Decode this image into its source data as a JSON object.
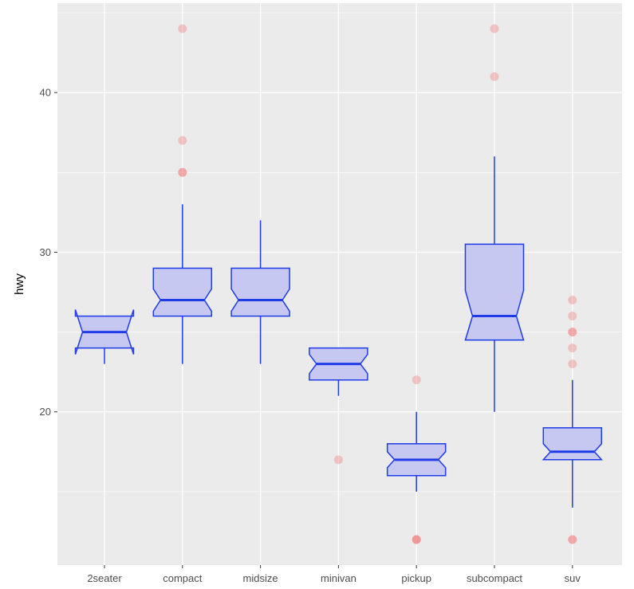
{
  "chart_data": {
    "type": "boxplot",
    "notched": true,
    "title": "",
    "xlabel": "",
    "ylabel": "hwy",
    "ylim": [
      10.4,
      45.6
    ],
    "y_major_ticks": [
      20,
      30,
      40
    ],
    "y_tick_labels": [
      "20",
      "30",
      "40"
    ],
    "y_minor_ticks": [
      15,
      25,
      35,
      45
    ],
    "categories": [
      "2seater",
      "compact",
      "midsize",
      "minivan",
      "pickup",
      "subcompact",
      "suv"
    ],
    "boxes": [
      {
        "category": "2seater",
        "lower_whisker": 23,
        "q1": 24,
        "median": 25,
        "q3": 26,
        "upper_whisker": 26,
        "notch_low": 23.6,
        "notch_high": 26.4,
        "outliers": []
      },
      {
        "category": "compact",
        "lower_whisker": 23,
        "q1": 26,
        "median": 27,
        "q3": 29,
        "upper_whisker": 33,
        "notch_low": 26.3,
        "notch_high": 27.7,
        "outliers": [
          44,
          37,
          35,
          35
        ]
      },
      {
        "category": "midsize",
        "lower_whisker": 23,
        "q1": 26,
        "median": 27,
        "q3": 29,
        "upper_whisker": 32,
        "notch_low": 26.3,
        "notch_high": 27.7,
        "outliers": []
      },
      {
        "category": "minivan",
        "lower_whisker": 21,
        "q1": 22,
        "median": 23,
        "q3": 24,
        "upper_whisker": 24,
        "notch_low": 22.4,
        "notch_high": 23.6,
        "outliers": [
          17
        ]
      },
      {
        "category": "pickup",
        "lower_whisker": 15,
        "q1": 16,
        "median": 17,
        "q3": 18,
        "upper_whisker": 20,
        "notch_low": 16.5,
        "notch_high": 17.5,
        "outliers": [
          22,
          12,
          12,
          12
        ]
      },
      {
        "category": "subcompact",
        "lower_whisker": 20,
        "q1": 24.5,
        "median": 26,
        "q3": 30.5,
        "upper_whisker": 36,
        "notch_low": 24.5,
        "notch_high": 27.6,
        "outliers": [
          44,
          41
        ]
      },
      {
        "category": "suv",
        "lower_whisker": 14,
        "q1": 17,
        "median": 17.5,
        "q3": 19,
        "upper_whisker": 22,
        "notch_low": 17.0,
        "notch_high": 18.0,
        "outliers": [
          27,
          26,
          25,
          25,
          24,
          23,
          12,
          12
        ]
      }
    ],
    "colors": {
      "panel_background": "#ebebeb",
      "grid_line": "#ffffff",
      "box_fill": "#c6c8f2",
      "box_outline": "#1f3ce6",
      "outlier": "#f08080",
      "tick_mark": "#333333"
    }
  }
}
